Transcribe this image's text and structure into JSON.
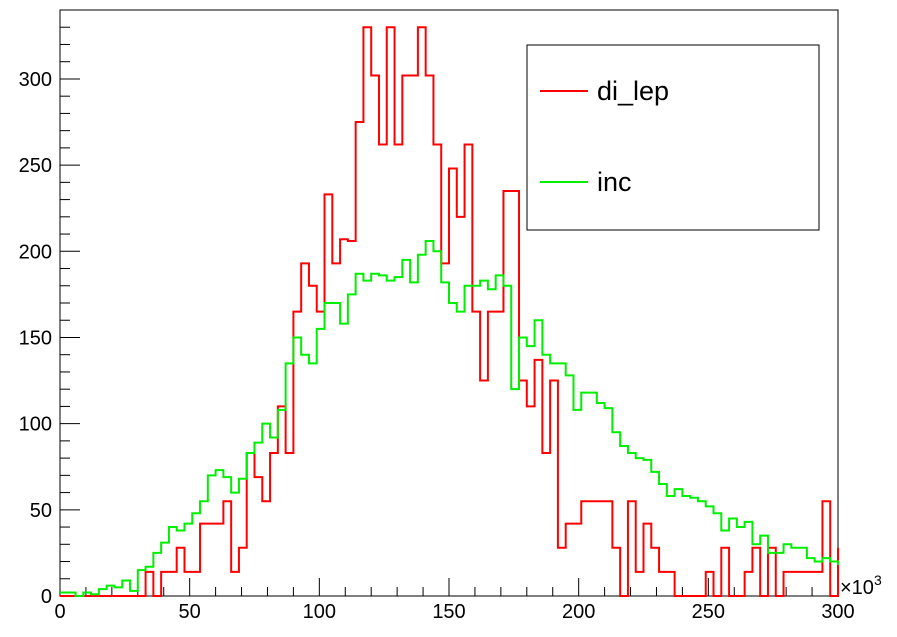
{
  "chart_data": {
    "type": "line",
    "title": "",
    "xlabel": "",
    "ylabel": "",
    "x_exponent_label": "×10",
    "x_exponent_power": "3",
    "xlim": [
      0,
      300
    ],
    "ylim": [
      0,
      340
    ],
    "x_ticks": [
      0,
      50,
      100,
      150,
      200,
      250,
      300
    ],
    "y_ticks": [
      0,
      50,
      100,
      150,
      200,
      250,
      300
    ],
    "bin_start": 0,
    "bin_width": 3,
    "series": [
      {
        "name": "di_lep",
        "color": "#ff0000",
        "values": [
          0,
          0,
          0,
          0,
          0,
          0,
          0,
          0,
          0,
          0,
          0,
          14,
          0,
          14,
          14,
          28,
          14,
          14,
          42,
          42,
          42,
          55,
          14,
          28,
          83,
          69,
          55,
          83,
          110,
          83,
          165,
          193,
          180,
          165,
          233,
          193,
          207,
          206,
          275,
          330,
          302,
          262,
          330,
          262,
          302,
          302,
          330,
          302,
          262,
          193,
          248,
          220,
          262,
          165,
          125,
          165,
          165,
          235,
          235,
          125,
          110,
          137,
          83,
          125,
          28,
          42,
          42,
          55,
          55,
          55,
          55,
          28,
          0,
          55,
          14,
          42,
          28,
          14,
          14,
          0,
          0,
          0,
          0,
          14,
          0,
          28,
          0,
          0,
          14,
          28,
          0,
          28,
          0,
          14,
          14,
          14,
          14,
          14,
          55,
          0,
          28
        ]
      },
      {
        "name": "inc",
        "color": "#00ee00",
        "values": [
          2,
          2,
          0,
          2,
          1,
          4,
          6,
          5,
          9,
          3,
          15,
          17,
          25,
          31,
          40,
          38,
          42,
          48,
          55,
          70,
          73,
          69,
          60,
          68,
          83,
          89,
          100,
          92,
          108,
          135,
          150,
          140,
          135,
          155,
          170,
          170,
          158,
          175,
          187,
          183,
          187,
          186,
          183,
          185,
          195,
          182,
          198,
          206,
          200,
          182,
          170,
          165,
          180,
          180,
          183,
          178,
          186,
          180,
          120,
          150,
          145,
          160,
          140,
          135,
          135,
          128,
          108,
          118,
          118,
          112,
          109,
          95,
          87,
          83,
          80,
          79,
          72,
          65,
          58,
          62,
          58,
          57,
          55,
          52,
          48,
          38,
          45,
          40,
          43,
          30,
          35,
          25,
          25,
          30,
          28,
          28,
          22,
          20,
          22,
          20,
          18
        ]
      }
    ],
    "legend": {
      "position": "top-right"
    }
  }
}
